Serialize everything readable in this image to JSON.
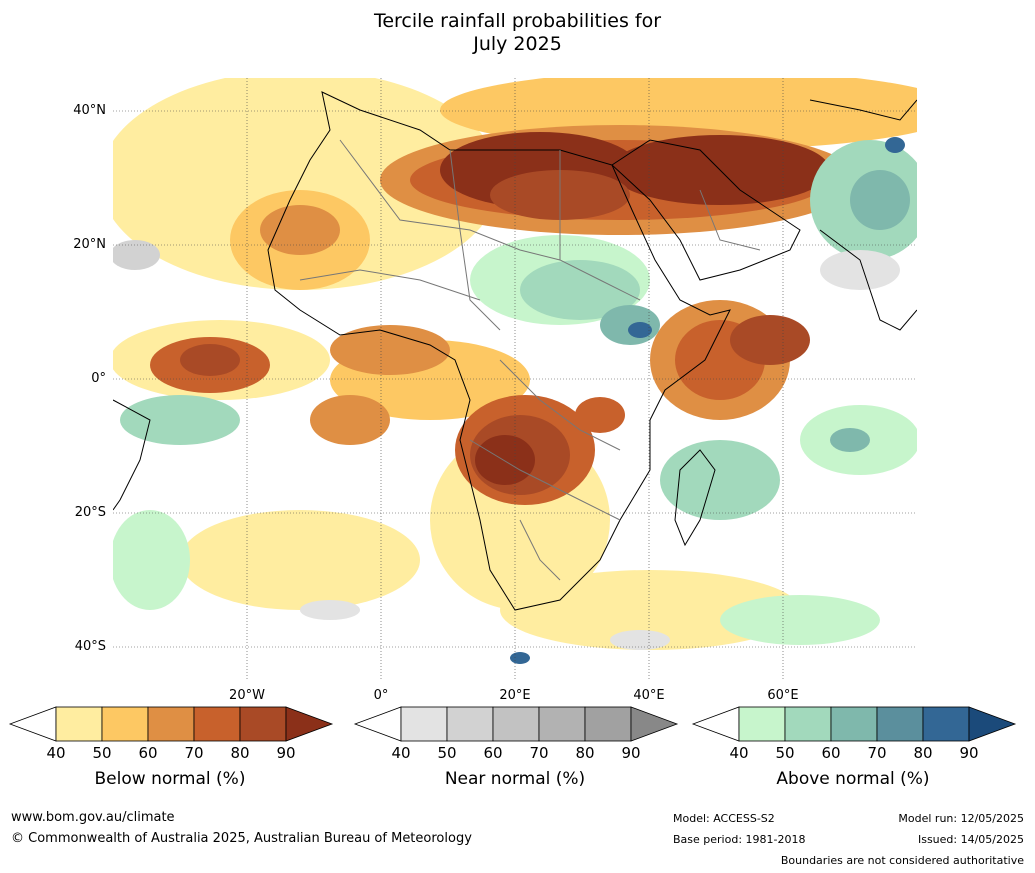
{
  "title_line1": "Tercile rainfall probabilities for",
  "title_line2": "July 2025",
  "map": {
    "lat_labels": [
      "40°N",
      "20°N",
      "0°",
      "20°S",
      "40°S"
    ],
    "lon_labels": [
      "20°W",
      "0°",
      "20°E",
      "40°E",
      "60°E"
    ]
  },
  "legends": [
    {
      "label": "Below normal (%)",
      "ticks": [
        "40",
        "50",
        "60",
        "70",
        "80",
        "90"
      ],
      "colors": [
        "#ffeda0",
        "#fdc863",
        "#df8f44",
        "#c8612c",
        "#a94a26",
        "#8b3019"
      ]
    },
    {
      "label": "Near normal (%)",
      "ticks": [
        "40",
        "50",
        "60",
        "70",
        "80",
        "90"
      ],
      "colors": [
        "#e3e3e3",
        "#d2d2d2",
        "#c2c2c2",
        "#b2b2b2",
        "#a1a1a1",
        "#888888"
      ]
    },
    {
      "label": "Above normal (%)",
      "ticks": [
        "40",
        "50",
        "60",
        "70",
        "80",
        "90"
      ],
      "colors": [
        "#c7f5cc",
        "#a2d9bc",
        "#7fb8ac",
        "#5b8f9d",
        "#336795",
        "#1b4a7a"
      ]
    }
  ],
  "footer": {
    "website": "www.bom.gov.au/climate",
    "copyright": "© Commonwealth of Australia 2025, Australian Bureau of Meteorology",
    "model": "Model: ACCESS-S2",
    "base_period": "Base period: 1981-2018",
    "model_run": "Model run: 12/05/2025",
    "issued": "Issued: 14/05/2025",
    "disclaimer": "Boundaries are not considered authoritative"
  }
}
